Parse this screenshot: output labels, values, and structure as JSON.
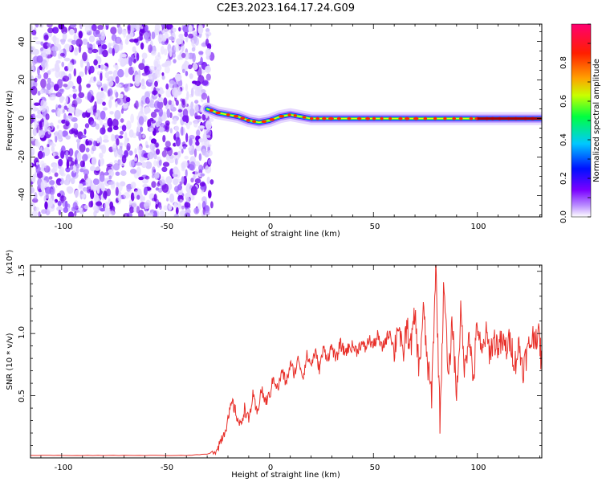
{
  "title": "C2E3.2023.164.17.24.G09",
  "chart_data": [
    {
      "type": "heatmap",
      "xlabel": "Height of straight line (km)",
      "ylabel": "Frequency (Hz)",
      "xlim": [
        -115,
        131
      ],
      "ylim": [
        -51,
        49
      ],
      "xticks": [
        "-100",
        "-50",
        "0",
        "50",
        "100"
      ],
      "yticks": [
        "-40",
        "-20",
        "0",
        "20",
        "40"
      ],
      "colorbar": {
        "label": "Normalized spectral amplitude",
        "range": [
          0.0,
          1.0
        ],
        "ticks": [
          "0.0",
          "0.2",
          "0.4",
          "0.6",
          "0.8"
        ],
        "colors": [
          "#ffffff",
          "#7a00ff",
          "#0000ff",
          "#00c8ff",
          "#00ff00",
          "#ffff00",
          "#ff8000",
          "#ff0000",
          "#ff0080"
        ]
      },
      "features": {
        "noise_region_x": [
          -115,
          -30
        ],
        "signal_start_x": -30,
        "signal_track": [
          {
            "x": -30,
            "y": 5
          },
          {
            "x": -25,
            "y": 3
          },
          {
            "x": -20,
            "y": 2
          },
          {
            "x": -15,
            "y": 1
          },
          {
            "x": -10,
            "y": -1
          },
          {
            "x": -5,
            "y": -2
          },
          {
            "x": 0,
            "y": -1
          },
          {
            "x": 5,
            "y": 1
          },
          {
            "x": 10,
            "y": 2
          },
          {
            "x": 20,
            "y": 0
          },
          {
            "x": 40,
            "y": 0
          },
          {
            "x": 70,
            "y": 0
          },
          {
            "x": 100,
            "y": 0
          },
          {
            "x": 131,
            "y": 0
          }
        ]
      }
    },
    {
      "type": "line",
      "xlabel": "Height of straight line (km)",
      "ylabel": "SNR (10 * v/v)",
      "multiplier": "(x10⁴)",
      "xlim": [
        -115,
        131
      ],
      "ylim": [
        0,
        1.55
      ],
      "xticks": [
        "-100",
        "-50",
        "0",
        "50",
        "100"
      ],
      "yticks": [
        "0.5",
        "1.0",
        "1.5"
      ],
      "color": "#e8302a",
      "series": [
        {
          "x": [
            -115,
            -100,
            -80,
            -60,
            -40,
            -30,
            -26,
            -24,
            -22,
            -20,
            -18,
            -16,
            -14,
            -12,
            -10,
            -8,
            -6,
            -4,
            -2,
            0,
            2,
            4,
            6,
            8,
            10,
            12,
            14,
            16,
            18,
            20,
            22,
            24,
            26,
            28,
            30,
            32,
            34,
            36,
            38,
            40,
            42,
            44,
            46,
            48,
            50,
            52,
            54,
            56,
            58,
            60,
            62,
            64,
            66,
            68,
            70,
            72,
            74,
            76,
            78,
            80,
            82,
            84,
            86,
            88,
            90,
            92,
            94,
            96,
            98,
            100,
            102,
            104,
            106,
            108,
            110,
            112,
            114,
            116,
            118,
            120,
            122,
            124,
            126,
            128,
            130,
            131
          ],
          "y": [
            0.02,
            0.02,
            0.02,
            0.02,
            0.02,
            0.03,
            0.05,
            0.12,
            0.2,
            0.3,
            0.45,
            0.35,
            0.25,
            0.4,
            0.3,
            0.5,
            0.35,
            0.55,
            0.45,
            0.5,
            0.65,
            0.55,
            0.7,
            0.6,
            0.75,
            0.68,
            0.8,
            0.65,
            0.82,
            0.75,
            0.85,
            0.72,
            0.88,
            0.8,
            0.9,
            0.78,
            0.92,
            0.85,
            0.88,
            0.9,
            0.86,
            0.92,
            0.88,
            0.95,
            0.9,
            0.98,
            0.88,
            0.95,
            1.02,
            0.85,
            1.1,
            0.8,
            1.05,
            0.9,
            1.15,
            0.7,
            1.2,
            0.75,
            0.5,
            1.55,
            0.3,
            1.45,
            0.6,
            1.1,
            0.5,
            1.15,
            0.7,
            1.05,
            0.6,
            1.1,
            0.8,
            1.0,
            0.85,
            0.95,
            0.9,
            0.92,
            0.88,
            0.95,
            0.75,
            0.9,
            0.72,
            0.85,
            0.95,
            1.0,
            0.95,
            0.7
          ]
        }
      ]
    }
  ]
}
